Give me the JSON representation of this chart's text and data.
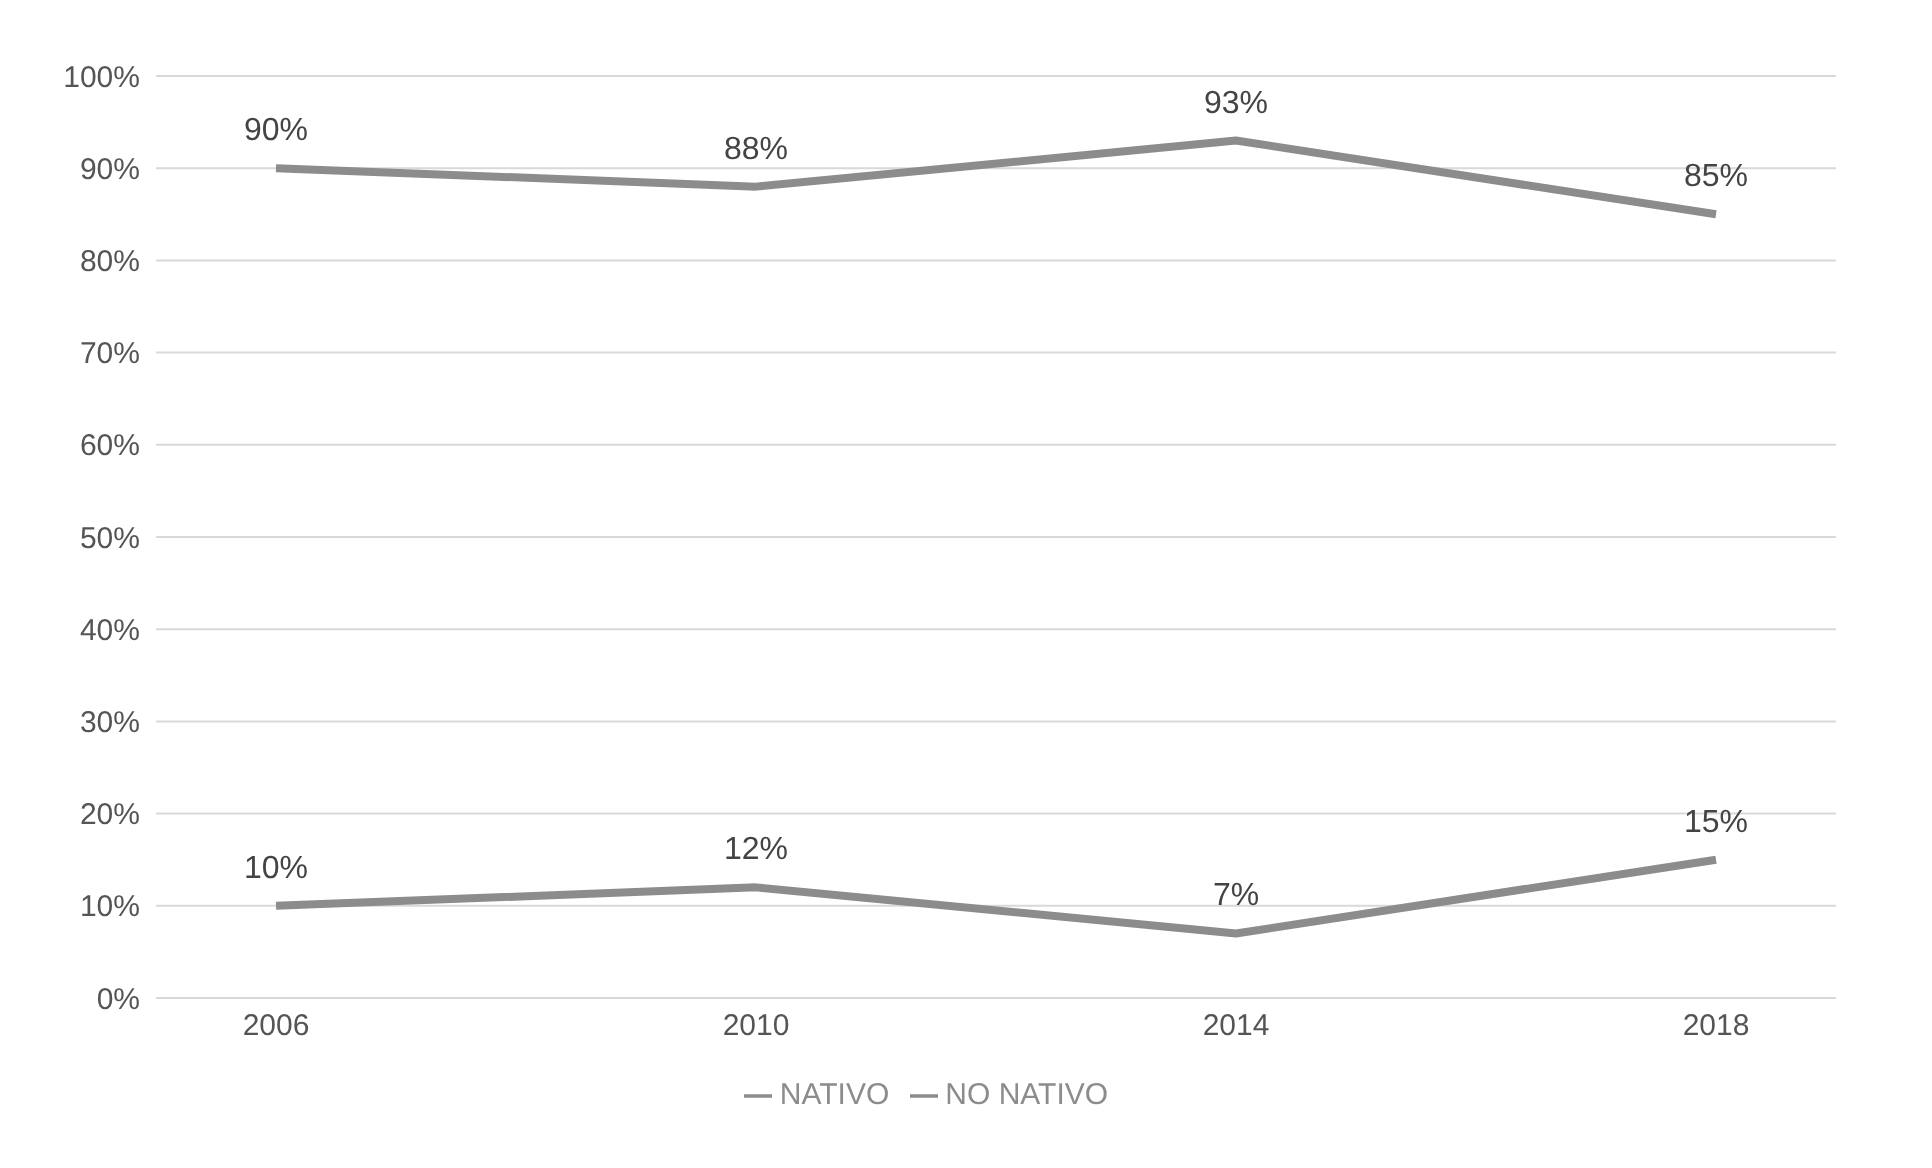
{
  "chart_data": {
    "type": "line",
    "categories": [
      "2006",
      "2010",
      "2014",
      "2018"
    ],
    "series": [
      {
        "name": "NATIVO",
        "color": "#8c8c8c",
        "values": [
          90,
          88,
          93,
          85
        ],
        "value_labels": [
          "90%",
          "88%",
          "93%",
          "85%"
        ]
      },
      {
        "name": "NO NATIVO",
        "color": "#8c8c8c",
        "values": [
          10,
          12,
          7,
          15
        ],
        "value_labels": [
          "10%",
          "12%",
          "7%",
          "15%"
        ]
      }
    ],
    "ylim": [
      0,
      100
    ],
    "yticks": [
      {
        "value": 0,
        "label": "0%"
      },
      {
        "value": 10,
        "label": "10%"
      },
      {
        "value": 20,
        "label": "20%"
      },
      {
        "value": 30,
        "label": "30%"
      },
      {
        "value": 40,
        "label": "40%"
      },
      {
        "value": 50,
        "label": "50%"
      },
      {
        "value": 60,
        "label": "60%"
      },
      {
        "value": 70,
        "label": "70%"
      },
      {
        "value": 80,
        "label": "80%"
      },
      {
        "value": 90,
        "label": "90%"
      },
      {
        "value": 100,
        "label": "100%"
      }
    ],
    "grid": "y",
    "legend": "bottom",
    "marker": "none",
    "line_style": "solid"
  }
}
